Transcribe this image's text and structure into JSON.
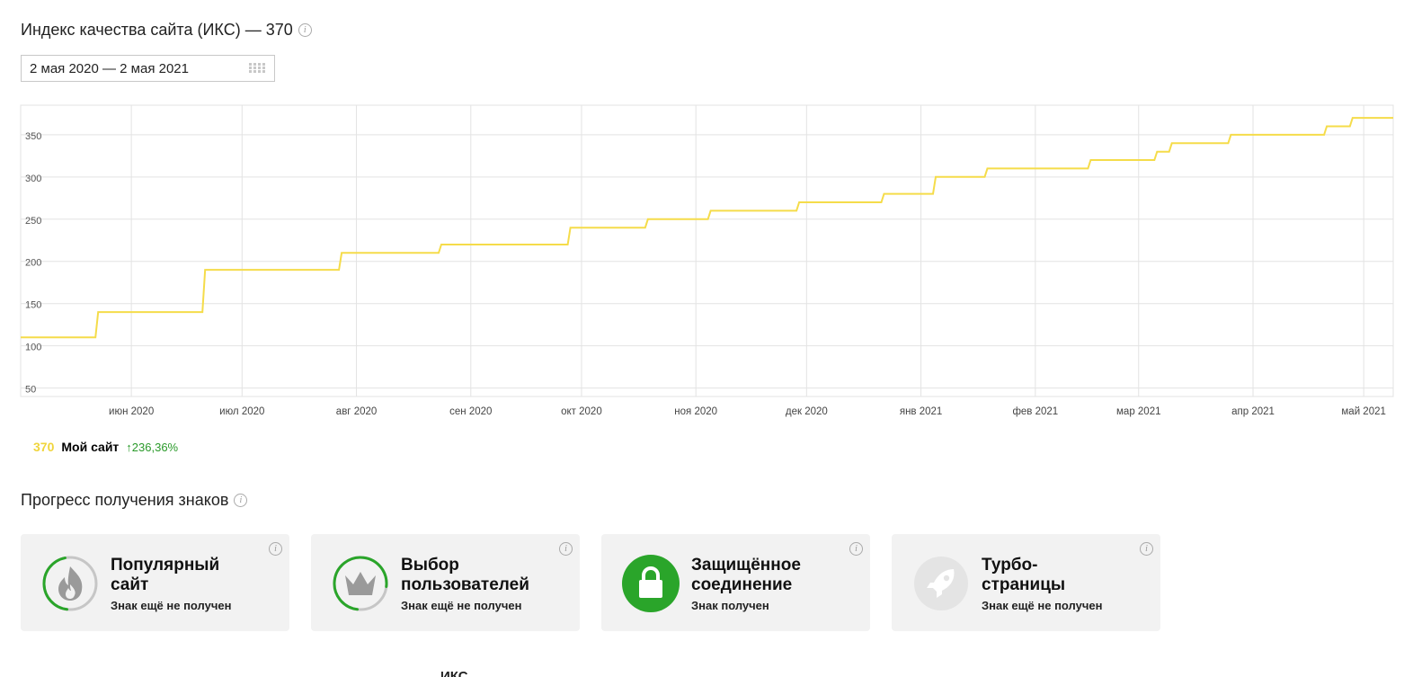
{
  "header": {
    "title": "Индекс качества сайта (ИКС) — 370",
    "info_icon": "info-icon"
  },
  "date_picker": {
    "value": "2 мая 2020 — 2 мая 2021",
    "icon": "calendar-grid-icon"
  },
  "chart_data": {
    "type": "line",
    "title": "",
    "xlabel": "",
    "ylabel": "",
    "ylim": [
      40,
      385
    ],
    "yticks": [
      50,
      100,
      150,
      200,
      250,
      300,
      350
    ],
    "x_range": [
      "2020-05-02",
      "2021-05-09"
    ],
    "xticks": [
      {
        "date": "2020-06-01",
        "label": "июн 2020"
      },
      {
        "date": "2020-07-01",
        "label": "июл 2020"
      },
      {
        "date": "2020-08-01",
        "label": "авг 2020"
      },
      {
        "date": "2020-09-01",
        "label": "сен 2020"
      },
      {
        "date": "2020-10-01",
        "label": "окт 2020"
      },
      {
        "date": "2020-11-01",
        "label": "ноя 2020"
      },
      {
        "date": "2020-12-01",
        "label": "дек 2020"
      },
      {
        "date": "2021-01-01",
        "label": "янв 2021"
      },
      {
        "date": "2021-02-01",
        "label": "фев 2021"
      },
      {
        "date": "2021-03-01",
        "label": "мар 2021"
      },
      {
        "date": "2021-04-01",
        "label": "апр 2021"
      },
      {
        "date": "2021-05-01",
        "label": "май 2021"
      }
    ],
    "grid": true,
    "series": [
      {
        "name": "Мой сайт",
        "color": "#f5dc4a",
        "step": true,
        "points": [
          {
            "x": "2020-05-02",
            "y": 110
          },
          {
            "x": "2020-05-23",
            "y": 140
          },
          {
            "x": "2020-06-21",
            "y": 190
          },
          {
            "x": "2020-07-28",
            "y": 210
          },
          {
            "x": "2020-08-24",
            "y": 220
          },
          {
            "x": "2020-09-28",
            "y": 240
          },
          {
            "x": "2020-10-19",
            "y": 250
          },
          {
            "x": "2020-11-05",
            "y": 260
          },
          {
            "x": "2020-11-29",
            "y": 270
          },
          {
            "x": "2020-12-22",
            "y": 280
          },
          {
            "x": "2021-01-05",
            "y": 300
          },
          {
            "x": "2021-01-19",
            "y": 310
          },
          {
            "x": "2021-02-16",
            "y": 320
          },
          {
            "x": "2021-03-06",
            "y": 330
          },
          {
            "x": "2021-03-10",
            "y": 340
          },
          {
            "x": "2021-03-26",
            "y": 350
          },
          {
            "x": "2021-04-21",
            "y": 360
          },
          {
            "x": "2021-04-28",
            "y": 370
          },
          {
            "x": "2021-05-09",
            "y": 370
          }
        ]
      }
    ]
  },
  "legend": {
    "value": "370",
    "name": "Мой сайт",
    "delta": "↑236,36%"
  },
  "badges_section": {
    "title": "Прогресс получения знаков",
    "badges": [
      {
        "title_line1": "Популярный",
        "title_line2": "сайт",
        "status": "Знак ещё не получен",
        "icon": "flame-icon",
        "progress": 0.45,
        "obtained": false
      },
      {
        "title_line1": "Выбор",
        "title_line2": "пользователей",
        "status": "Знак ещё не получен",
        "icon": "crown-icon",
        "progress": 0.75,
        "obtained": false
      },
      {
        "title_line1": "Защищённое",
        "title_line2": "соединение",
        "status": "Знак получен",
        "icon": "lock-icon",
        "progress": 1.0,
        "obtained": true
      },
      {
        "title_line1": "Турбо-",
        "title_line2": "страницы",
        "status": "Знак ещё не получен",
        "icon": "rocket-icon",
        "progress": 0,
        "obtained": false
      }
    ]
  },
  "bottom_row": {
    "col_iks": "ИКС"
  },
  "colors": {
    "line": "#f5dc4a",
    "grid": "#e3e3e3",
    "green": "#2aa52a",
    "delta": "#2a9a2a"
  }
}
